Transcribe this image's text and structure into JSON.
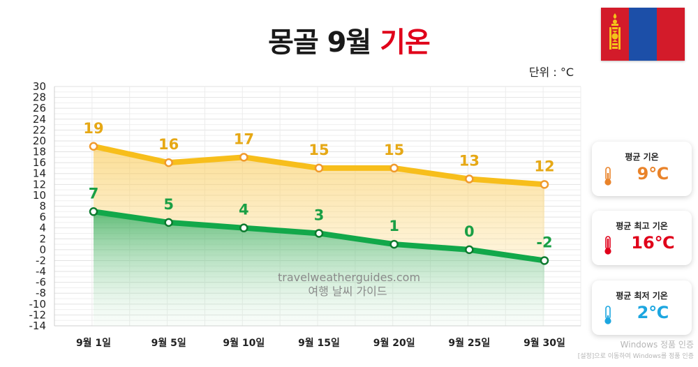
{
  "title": {
    "main": "몽골 9월",
    "accent": "기온"
  },
  "unit_label": "단위 : °C",
  "colors": {
    "avg_high": "#f7be1b",
    "avg_low": "#12a84a",
    "high_label": "#e6a815",
    "low_label": "#1a9f45",
    "card_avg": "#e9832a",
    "card_high": "#e0001a",
    "card_low": "#1ca6e0"
  },
  "chart_data": {
    "type": "line",
    "categories": [
      "9월 1일",
      "9월 5일",
      "9월 10일",
      "9월 15일",
      "9월 20일",
      "9월 25일",
      "9월 30일"
    ],
    "series": [
      {
        "key": "high",
        "values": [
          19,
          16,
          17,
          15,
          15,
          13,
          12
        ]
      },
      {
        "key": "low",
        "values": [
          7,
          5,
          4,
          3,
          1,
          0,
          -2
        ]
      }
    ],
    "ylim": [
      -14,
      30
    ],
    "yticks": [
      30,
      28,
      26,
      24,
      22,
      20,
      18,
      16,
      14,
      12,
      10,
      8,
      6,
      4,
      2,
      0,
      -2,
      -4,
      -6,
      -8,
      -10,
      -12,
      -14
    ],
    "ylabel": "",
    "xlabel": "",
    "grid": true,
    "legend": "none"
  },
  "cards": [
    {
      "label": "평균 기온",
      "value": "9℃",
      "color_key": "card_avg",
      "icon": "thermometer-mid-icon"
    },
    {
      "label": "평균 최고 기온",
      "value": "16℃",
      "color_key": "card_high",
      "icon": "thermometer-high-icon"
    },
    {
      "label": "평균 최저 기온",
      "value": "2℃",
      "color_key": "card_low",
      "icon": "thermometer-low-icon"
    }
  ],
  "watermark": {
    "line1": "travelweatherguides.com",
    "line2": "여행 날씨 가이드"
  },
  "windows_notice": {
    "line1": "Windows 정품 인증",
    "line2": "[설정]으로 이동하여 Windows를 정품 인증"
  }
}
